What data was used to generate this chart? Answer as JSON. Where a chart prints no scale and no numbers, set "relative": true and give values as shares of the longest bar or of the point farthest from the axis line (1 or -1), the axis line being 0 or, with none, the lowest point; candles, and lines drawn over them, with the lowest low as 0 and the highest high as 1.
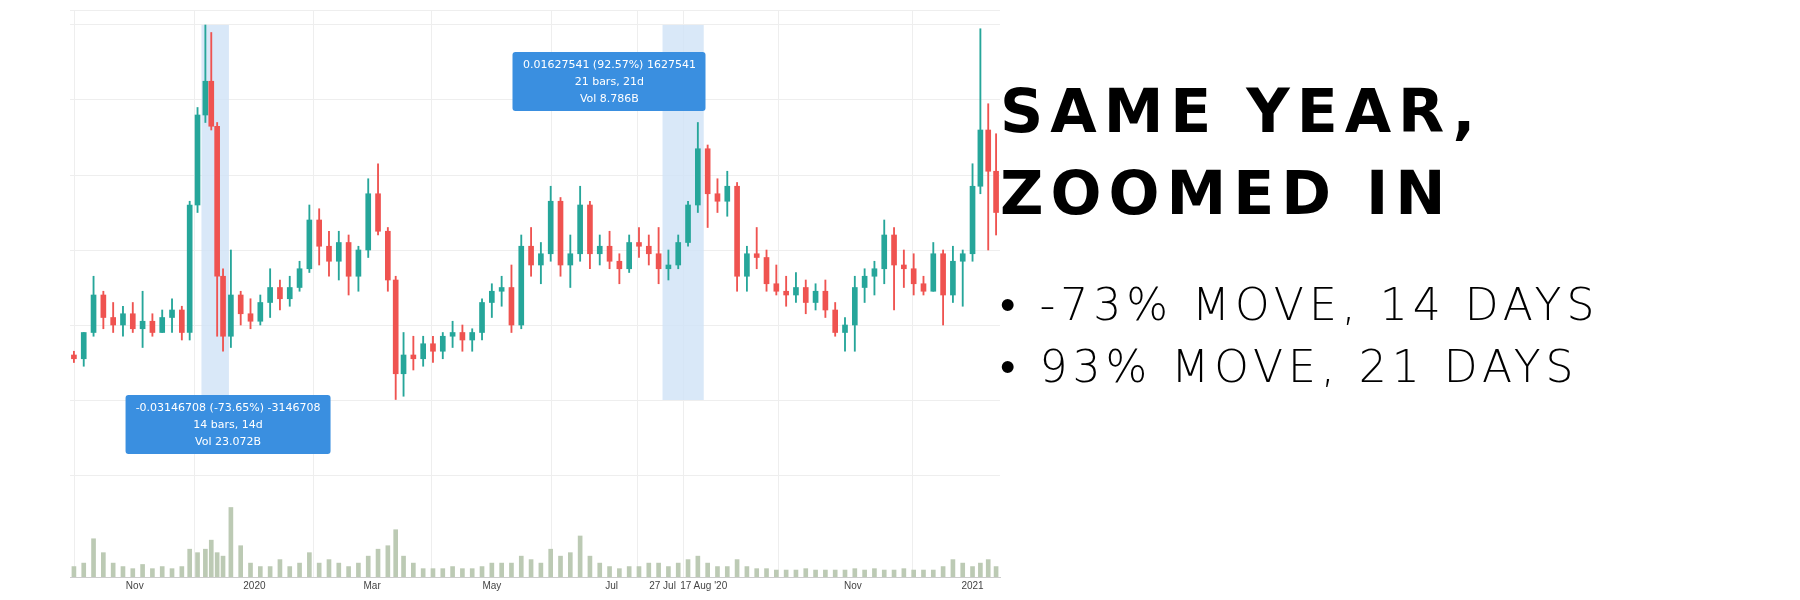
{
  "chart_data": [
    {
      "type": "candlestick",
      "relative": true,
      "grid": true,
      "tick_labels": false,
      "x": [
        "2019-10-01",
        "2019-10-06",
        "2019-10-11",
        "2019-10-16",
        "2019-10-21",
        "2019-10-26",
        "2019-10-31",
        "2019-11-05",
        "2019-11-10",
        "2019-11-15",
        "2019-11-20",
        "2019-11-25",
        "2019-11-29",
        "2019-12-03",
        "2019-12-07",
        "2019-12-10",
        "2019-12-13",
        "2019-12-16",
        "2019-12-20",
        "2019-12-25",
        "2019-12-30",
        "2020-01-04",
        "2020-01-09",
        "2020-01-14",
        "2020-01-19",
        "2020-01-24",
        "2020-01-29",
        "2020-02-03",
        "2020-02-08",
        "2020-02-13",
        "2020-02-18",
        "2020-02-23",
        "2020-02-28",
        "2020-03-04",
        "2020-03-09",
        "2020-03-13",
        "2020-03-17",
        "2020-03-22",
        "2020-03-27",
        "2020-04-01",
        "2020-04-06",
        "2020-04-11",
        "2020-04-16",
        "2020-04-21",
        "2020-04-26",
        "2020-05-01",
        "2020-05-06",
        "2020-05-11",
        "2020-05-16",
        "2020-05-21",
        "2020-05-26",
        "2020-05-31",
        "2020-06-05",
        "2020-06-10",
        "2020-06-15",
        "2020-06-20",
        "2020-06-25",
        "2020-06-30",
        "2020-07-05",
        "2020-07-10",
        "2020-07-15",
        "2020-07-20",
        "2020-07-25",
        "2020-07-30",
        "2020-08-04",
        "2020-08-09",
        "2020-08-14",
        "2020-08-19",
        "2020-08-24",
        "2020-08-29",
        "2020-09-03",
        "2020-09-08",
        "2020-09-13",
        "2020-09-18",
        "2020-09-23",
        "2020-09-28",
        "2020-10-03",
        "2020-10-08",
        "2020-10-13",
        "2020-10-18",
        "2020-10-23",
        "2020-10-28",
        "2020-11-02",
        "2020-11-07",
        "2020-11-12",
        "2020-11-17",
        "2020-11-22",
        "2020-11-27",
        "2020-12-02",
        "2020-12-07",
        "2020-12-12",
        "2020-12-17",
        "2020-12-22",
        "2020-12-27",
        "2021-01-01",
        "2021-01-05",
        "2021-01-09",
        "2021-01-13"
      ],
      "ohlc": [
        [
          0.12,
          0.13,
          0.1,
          0.11
        ],
        [
          0.11,
          0.18,
          0.09,
          0.18
        ],
        [
          0.18,
          0.33,
          0.17,
          0.28
        ],
        [
          0.28,
          0.29,
          0.19,
          0.22
        ],
        [
          0.22,
          0.26,
          0.18,
          0.2
        ],
        [
          0.2,
          0.25,
          0.17,
          0.23
        ],
        [
          0.23,
          0.26,
          0.18,
          0.19
        ],
        [
          0.19,
          0.29,
          0.14,
          0.21
        ],
        [
          0.21,
          0.23,
          0.17,
          0.18
        ],
        [
          0.18,
          0.24,
          0.18,
          0.22
        ],
        [
          0.22,
          0.27,
          0.18,
          0.24
        ],
        [
          0.24,
          0.25,
          0.16,
          0.18
        ],
        [
          0.18,
          0.53,
          0.16,
          0.52
        ],
        [
          0.52,
          0.78,
          0.5,
          0.76
        ],
        [
          0.76,
          1,
          0.74,
          0.85
        ],
        [
          0.85,
          0.98,
          0.72,
          0.73
        ],
        [
          0.73,
          0.74,
          0.17,
          0.33
        ],
        [
          0.33,
          0.35,
          0.13,
          0.17
        ],
        [
          0.17,
          0.4,
          0.14,
          0.28
        ],
        [
          0.28,
          0.29,
          0.2,
          0.23
        ],
        [
          0.23,
          0.27,
          0.19,
          0.21
        ],
        [
          0.21,
          0.28,
          0.2,
          0.26
        ],
        [
          0.26,
          0.35,
          0.22,
          0.3
        ],
        [
          0.3,
          0.32,
          0.24,
          0.27
        ],
        [
          0.27,
          0.33,
          0.25,
          0.3
        ],
        [
          0.3,
          0.37,
          0.29,
          0.35
        ],
        [
          0.35,
          0.52,
          0.34,
          0.48
        ],
        [
          0.48,
          0.51,
          0.36,
          0.41
        ],
        [
          0.41,
          0.45,
          0.33,
          0.37
        ],
        [
          0.37,
          0.45,
          0.32,
          0.42
        ],
        [
          0.42,
          0.44,
          0.28,
          0.33
        ],
        [
          0.33,
          0.41,
          0.29,
          0.4
        ],
        [
          0.4,
          0.59,
          0.38,
          0.55
        ],
        [
          0.55,
          0.63,
          0.44,
          0.45
        ],
        [
          0.45,
          0.46,
          0.29,
          0.32
        ],
        [
          0.32,
          0.33,
          0,
          0.07
        ],
        [
          0.07,
          0.18,
          0.01,
          0.12
        ],
        [
          0.12,
          0.17,
          0.08,
          0.11
        ],
        [
          0.11,
          0.17,
          0.09,
          0.15
        ],
        [
          0.15,
          0.17,
          0.1,
          0.13
        ],
        [
          0.13,
          0.18,
          0.11,
          0.17
        ],
        [
          0.17,
          0.21,
          0.14,
          0.18
        ],
        [
          0.18,
          0.2,
          0.13,
          0.16
        ],
        [
          0.16,
          0.19,
          0.13,
          0.18
        ],
        [
          0.18,
          0.27,
          0.16,
          0.26
        ],
        [
          0.26,
          0.31,
          0.22,
          0.29
        ],
        [
          0.29,
          0.33,
          0.25,
          0.3
        ],
        [
          0.3,
          0.36,
          0.18,
          0.2
        ],
        [
          0.2,
          0.44,
          0.19,
          0.41
        ],
        [
          0.41,
          0.46,
          0.33,
          0.36
        ],
        [
          0.36,
          0.42,
          0.31,
          0.39
        ],
        [
          0.39,
          0.57,
          0.37,
          0.53
        ],
        [
          0.53,
          0.54,
          0.33,
          0.36
        ],
        [
          0.36,
          0.44,
          0.3,
          0.39
        ],
        [
          0.39,
          0.57,
          0.37,
          0.52
        ],
        [
          0.52,
          0.53,
          0.35,
          0.39
        ],
        [
          0.39,
          0.44,
          0.36,
          0.41
        ],
        [
          0.41,
          0.45,
          0.35,
          0.37
        ],
        [
          0.37,
          0.39,
          0.31,
          0.35
        ],
        [
          0.35,
          0.44,
          0.34,
          0.42
        ],
        [
          0.42,
          0.46,
          0.38,
          0.41
        ],
        [
          0.41,
          0.44,
          0.36,
          0.39
        ],
        [
          0.39,
          0.46,
          0.31,
          0.35
        ],
        [
          0.35,
          0.4,
          0.32,
          0.36
        ],
        [
          0.36,
          0.44,
          0.35,
          0.42
        ],
        [
          0.42,
          0.53,
          0.41,
          0.52
        ],
        [
          0.52,
          0.74,
          0.5,
          0.67
        ],
        [
          0.67,
          0.68,
          0.46,
          0.55
        ],
        [
          0.55,
          0.59,
          0.5,
          0.53
        ],
        [
          0.53,
          0.61,
          0.49,
          0.57
        ],
        [
          0.57,
          0.58,
          0.29,
          0.33
        ],
        [
          0.33,
          0.41,
          0.29,
          0.39
        ],
        [
          0.39,
          0.46,
          0.35,
          0.38
        ],
        [
          0.38,
          0.4,
          0.29,
          0.31
        ],
        [
          0.31,
          0.36,
          0.28,
          0.29
        ],
        [
          0.29,
          0.33,
          0.25,
          0.28
        ],
        [
          0.28,
          0.34,
          0.26,
          0.3
        ],
        [
          0.3,
          0.32,
          0.23,
          0.26
        ],
        [
          0.26,
          0.31,
          0.24,
          0.29
        ],
        [
          0.29,
          0.32,
          0.22,
          0.24
        ],
        [
          0.24,
          0.26,
          0.17,
          0.18
        ],
        [
          0.18,
          0.22,
          0.13,
          0.2
        ],
        [
          0.2,
          0.33,
          0.13,
          0.3
        ],
        [
          0.3,
          0.35,
          0.26,
          0.33
        ],
        [
          0.33,
          0.37,
          0.28,
          0.35
        ],
        [
          0.35,
          0.48,
          0.31,
          0.44
        ],
        [
          0.44,
          0.46,
          0.24,
          0.36
        ],
        [
          0.36,
          0.4,
          0.3,
          0.35
        ],
        [
          0.35,
          0.39,
          0.28,
          0.31
        ],
        [
          0.31,
          0.33,
          0.28,
          0.29
        ],
        [
          0.29,
          0.42,
          0.29,
          0.39
        ],
        [
          0.39,
          0.4,
          0.2,
          0.28
        ],
        [
          0.28,
          0.41,
          0.26,
          0.37
        ],
        [
          0.37,
          0.4,
          0.25,
          0.39
        ],
        [
          0.39,
          0.63,
          0.37,
          0.57
        ],
        [
          0.57,
          0.99,
          0.55,
          0.72
        ],
        [
          0.72,
          0.79,
          0.4,
          0.61
        ],
        [
          0.61,
          0.71,
          0.44,
          0.5
        ]
      ],
      "colors": [
        "#ef5350",
        "#26a69a",
        "#26a69a",
        "#ef5350",
        "#ef5350",
        "#26a69a",
        "#ef5350",
        "#26a69a",
        "#ef5350",
        "#26a69a",
        "#26a69a",
        "#ef5350",
        "#26a69a",
        "#26a69a",
        "#26a69a",
        "#ef5350",
        "#ef5350",
        "#ef5350",
        "#26a69a",
        "#ef5350",
        "#ef5350",
        "#26a69a",
        "#26a69a",
        "#ef5350",
        "#26a69a",
        "#26a69a",
        "#26a69a",
        "#ef5350",
        "#ef5350",
        "#26a69a",
        "#ef5350",
        "#26a69a",
        "#26a69a",
        "#ef5350",
        "#ef5350",
        "#ef5350",
        "#26a69a",
        "#ef5350",
        "#26a69a",
        "#ef5350",
        "#26a69a",
        "#26a69a",
        "#ef5350",
        "#26a69a",
        "#26a69a",
        "#26a69a",
        "#26a69a",
        "#ef5350",
        "#26a69a",
        "#ef5350",
        "#26a69a",
        "#26a69a",
        "#ef5350",
        "#26a69a",
        "#26a69a",
        "#ef5350",
        "#26a69a",
        "#ef5350",
        "#ef5350",
        "#26a69a",
        "#ef5350",
        "#ef5350",
        "#ef5350",
        "#26a69a",
        "#26a69a",
        "#26a69a",
        "#26a69a",
        "#ef5350",
        "#ef5350",
        "#26a69a",
        "#ef5350",
        "#26a69a",
        "#ef5350",
        "#ef5350",
        "#ef5350",
        "#ef5350",
        "#26a69a",
        "#ef5350",
        "#26a69a",
        "#ef5350",
        "#ef5350",
        "#26a69a",
        "#26a69a",
        "#26a69a",
        "#26a69a",
        "#26a69a",
        "#ef5350",
        "#ef5350",
        "#ef5350",
        "#ef5350",
        "#26a69a",
        "#ef5350",
        "#26a69a",
        "#26a69a",
        "#26a69a",
        "#26a69a",
        "#ef5350",
        "#ef5350"
      ],
      "xlim": [
        "2019-09-29",
        "2021-01-15"
      ],
      "xticks": [
        {
          "value": "2019-11-01",
          "label": null
        },
        {
          "value": "2020-01-01",
          "label": null
        },
        {
          "value": "2020-03-01",
          "label": null
        },
        {
          "value": "2020-05-01",
          "label": null
        },
        {
          "value": "2020-07-01",
          "label": null
        },
        {
          "value": "2020-07-27",
          "label": null
        },
        {
          "value": "2020-08-17",
          "label": null
        },
        {
          "value": "2020-11-01",
          "label": null
        },
        {
          "value": "2021-01-01",
          "label": null
        }
      ],
      "bands": [
        {
          "axis": "x",
          "from": "2019-12-05",
          "to": "2019-12-19",
          "color": "#cfe2f6"
        },
        {
          "axis": "x",
          "from": "2020-07-27",
          "to": "2020-08-17",
          "color": "#cfe2f6"
        }
      ],
      "annotations": [
        "-0.03146708 (-73.65%) -3146708\n14 bars, 14d\nVol 23.072B",
        "0.01627541 (92.57%) 1627541\n21 bars, 21d\nVol 8.786B"
      ]
    },
    {
      "type": "bar",
      "relative": true,
      "grid": "x",
      "tick_labels": "x",
      "color": "#bccab4",
      "x": [
        "2019-10-01",
        "2019-10-06",
        "2019-10-11",
        "2019-10-16",
        "2019-10-21",
        "2019-10-26",
        "2019-10-31",
        "2019-11-05",
        "2019-11-10",
        "2019-11-15",
        "2019-11-20",
        "2019-11-25",
        "2019-11-29",
        "2019-12-03",
        "2019-12-07",
        "2019-12-10",
        "2019-12-13",
        "2019-12-16",
        "2019-12-20",
        "2019-12-25",
        "2019-12-30",
        "2020-01-04",
        "2020-01-09",
        "2020-01-14",
        "2020-01-19",
        "2020-01-24",
        "2020-01-29",
        "2020-02-03",
        "2020-02-08",
        "2020-02-13",
        "2020-02-18",
        "2020-02-23",
        "2020-02-28",
        "2020-03-04",
        "2020-03-09",
        "2020-03-13",
        "2020-03-17",
        "2020-03-22",
        "2020-03-27",
        "2020-04-01",
        "2020-04-06",
        "2020-04-11",
        "2020-04-16",
        "2020-04-21",
        "2020-04-26",
        "2020-05-01",
        "2020-05-06",
        "2020-05-11",
        "2020-05-16",
        "2020-05-21",
        "2020-05-26",
        "2020-05-31",
        "2020-06-05",
        "2020-06-10",
        "2020-06-15",
        "2020-06-20",
        "2020-06-25",
        "2020-06-30",
        "2020-07-05",
        "2020-07-10",
        "2020-07-15",
        "2020-07-20",
        "2020-07-25",
        "2020-07-30",
        "2020-08-04",
        "2020-08-09",
        "2020-08-14",
        "2020-08-19",
        "2020-08-24",
        "2020-08-29",
        "2020-09-03",
        "2020-09-08",
        "2020-09-13",
        "2020-09-18",
        "2020-09-23",
        "2020-09-28",
        "2020-10-03",
        "2020-10-08",
        "2020-10-13",
        "2020-10-18",
        "2020-10-23",
        "2020-10-28",
        "2020-11-02",
        "2020-11-07",
        "2020-11-12",
        "2020-11-17",
        "2020-11-22",
        "2020-11-27",
        "2020-12-02",
        "2020-12-07",
        "2020-12-12",
        "2020-12-17",
        "2020-12-22",
        "2020-12-27",
        "2021-01-01",
        "2021-01-05",
        "2021-01-09",
        "2021-01-13"
      ],
      "values": [
        0.15,
        0.2,
        0.55,
        0.35,
        0.2,
        0.15,
        0.12,
        0.18,
        0.12,
        0.15,
        0.12,
        0.15,
        0.4,
        0.35,
        0.4,
        0.53,
        0.35,
        0.3,
        1,
        0.45,
        0.2,
        0.15,
        0.15,
        0.25,
        0.15,
        0.2,
        0.35,
        0.2,
        0.25,
        0.2,
        0.15,
        0.2,
        0.3,
        0.4,
        0.45,
        0.68,
        0.3,
        0.2,
        0.12,
        0.12,
        0.12,
        0.15,
        0.12,
        0.12,
        0.15,
        0.2,
        0.2,
        0.2,
        0.3,
        0.25,
        0.2,
        0.4,
        0.3,
        0.35,
        0.59,
        0.3,
        0.2,
        0.15,
        0.12,
        0.15,
        0.15,
        0.2,
        0.2,
        0.15,
        0.2,
        0.25,
        0.3,
        0.2,
        0.15,
        0.15,
        0.25,
        0.15,
        0.12,
        0.12,
        0.1,
        0.1,
        0.1,
        0.12,
        0.1,
        0.1,
        0.1,
        0.1,
        0.12,
        0.1,
        0.12,
        0.1,
        0.1,
        0.12,
        0.1,
        0.1,
        0.1,
        0.15,
        0.25,
        0.2,
        0.15,
        0.2,
        0.25,
        0.15
      ],
      "xlim": [
        "2019-09-29",
        "2021-01-15"
      ],
      "xticks": [
        {
          "value": "2019-11-01",
          "label": "Nov"
        },
        {
          "value": "2020-01-01",
          "label": "2020"
        },
        {
          "value": "2020-03-01",
          "label": "Mar"
        },
        {
          "value": "2020-05-01",
          "label": "May"
        },
        {
          "value": "2020-07-01",
          "label": "Jul"
        },
        {
          "value": "2020-07-27",
          "label": "27 Jul"
        },
        {
          "value": "2020-08-17",
          "label": "17 Aug '20"
        },
        {
          "value": "2020-11-01",
          "label": "Nov"
        },
        {
          "value": "2021-01-01",
          "label": "2021"
        }
      ]
    },
    {
      "type": "other",
      "title": "SAME YEAR, ZOOMED IN",
      "annotations": [
        "• -73% MOVE, 14 DAYS",
        "• 93% MOVE, 21 DAYS"
      ]
    }
  ]
}
